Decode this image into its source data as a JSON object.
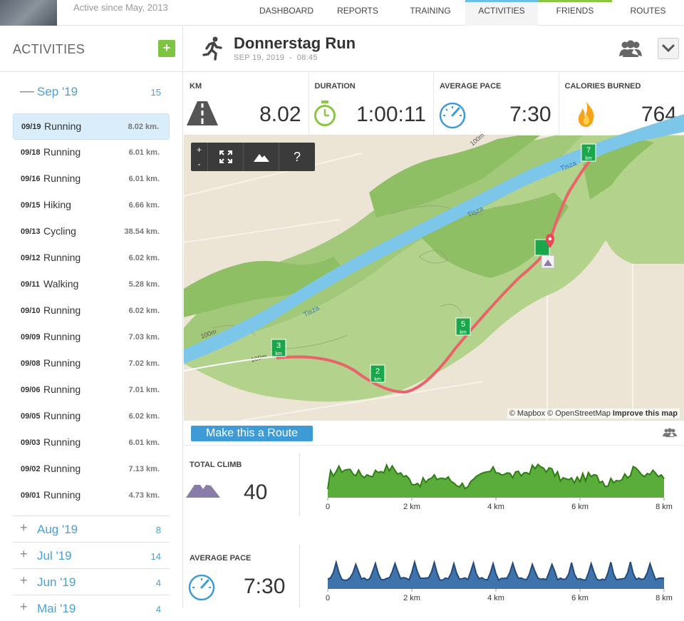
{
  "header": {
    "since": "Active since May, 2013",
    "nav": [
      "DASHBOARD",
      "REPORTS",
      "TRAINING",
      "ACTIVITIES",
      "FRIENDS",
      "ROUTES"
    ]
  },
  "sidebar": {
    "title": "ACTIVITIES",
    "add_label": "+",
    "open_month": {
      "sign": "—",
      "label": "Sep '19",
      "count": "15"
    },
    "activities": [
      {
        "date": "09/19",
        "name": "Running",
        "dist": "8.02 km."
      },
      {
        "date": "09/18",
        "name": "Running",
        "dist": "6.01 km."
      },
      {
        "date": "09/16",
        "name": "Running",
        "dist": "6.01 km."
      },
      {
        "date": "09/15",
        "name": "Hiking",
        "dist": "6.66 km."
      },
      {
        "date": "09/13",
        "name": "Cycling",
        "dist": "38.54 km."
      },
      {
        "date": "09/12",
        "name": "Running",
        "dist": "6.02 km."
      },
      {
        "date": "09/11",
        "name": "Walking",
        "dist": "5.28 km."
      },
      {
        "date": "09/10",
        "name": "Running",
        "dist": "6.02 km."
      },
      {
        "date": "09/09",
        "name": "Running",
        "dist": "7.03 km."
      },
      {
        "date": "09/08",
        "name": "Running",
        "dist": "7.02 km."
      },
      {
        "date": "09/06",
        "name": "Running",
        "dist": "7.01 km."
      },
      {
        "date": "09/05",
        "name": "Running",
        "dist": "6.02 km."
      },
      {
        "date": "09/03",
        "name": "Running",
        "dist": "6.01 km."
      },
      {
        "date": "09/02",
        "name": "Running",
        "dist": "7.13 km."
      },
      {
        "date": "09/01",
        "name": "Running",
        "dist": "4.73 km."
      }
    ],
    "months": [
      {
        "sign": "+",
        "label": "Aug '19",
        "count": "8"
      },
      {
        "sign": "+",
        "label": "Jul '19",
        "count": "14"
      },
      {
        "sign": "+",
        "label": "Jun '19",
        "count": "4"
      },
      {
        "sign": "+",
        "label": "Mai '19",
        "count": "4"
      }
    ]
  },
  "activity": {
    "title": "Donnerstag Run",
    "date": "SEP 19, 2019",
    "separator": "-",
    "time": "08:45"
  },
  "stats": [
    {
      "label": "KM",
      "value": "8.02",
      "icon": "road-icon"
    },
    {
      "label": "DURATION",
      "value": "1:00:11",
      "icon": "stopwatch-icon"
    },
    {
      "label": "AVERAGE PACE",
      "value": "7:30",
      "icon": "speedometer-icon"
    },
    {
      "label": "CALORIES BURNED",
      "value": "764",
      "icon": "flame-icon"
    }
  ],
  "map": {
    "controls": {
      "zoom_in": "+",
      "zoom_out": "-",
      "help": "?"
    },
    "labels": {
      "river": "Tisza",
      "contour": "100m"
    },
    "markers": [
      "2",
      "3",
      "5",
      "7"
    ],
    "marker_unit": "km",
    "attribution": "© Mapbox © OpenStreetMap",
    "improve": "Improve this map"
  },
  "route_button": "Make this a Route",
  "climb": {
    "label": "TOTAL CLIMB",
    "value": "40",
    "color": "#5aad3a",
    "ticks": [
      "0",
      "2 km",
      "4 km",
      "6 km",
      "8 km"
    ],
    "x_max": 8
  },
  "pace": {
    "label": "AVERAGE PACE",
    "value": "7:30",
    "color": "#3f73ac",
    "ticks": [
      "0",
      "2 km",
      "4 km",
      "6 km",
      "8 km"
    ],
    "x_max": 8
  }
}
